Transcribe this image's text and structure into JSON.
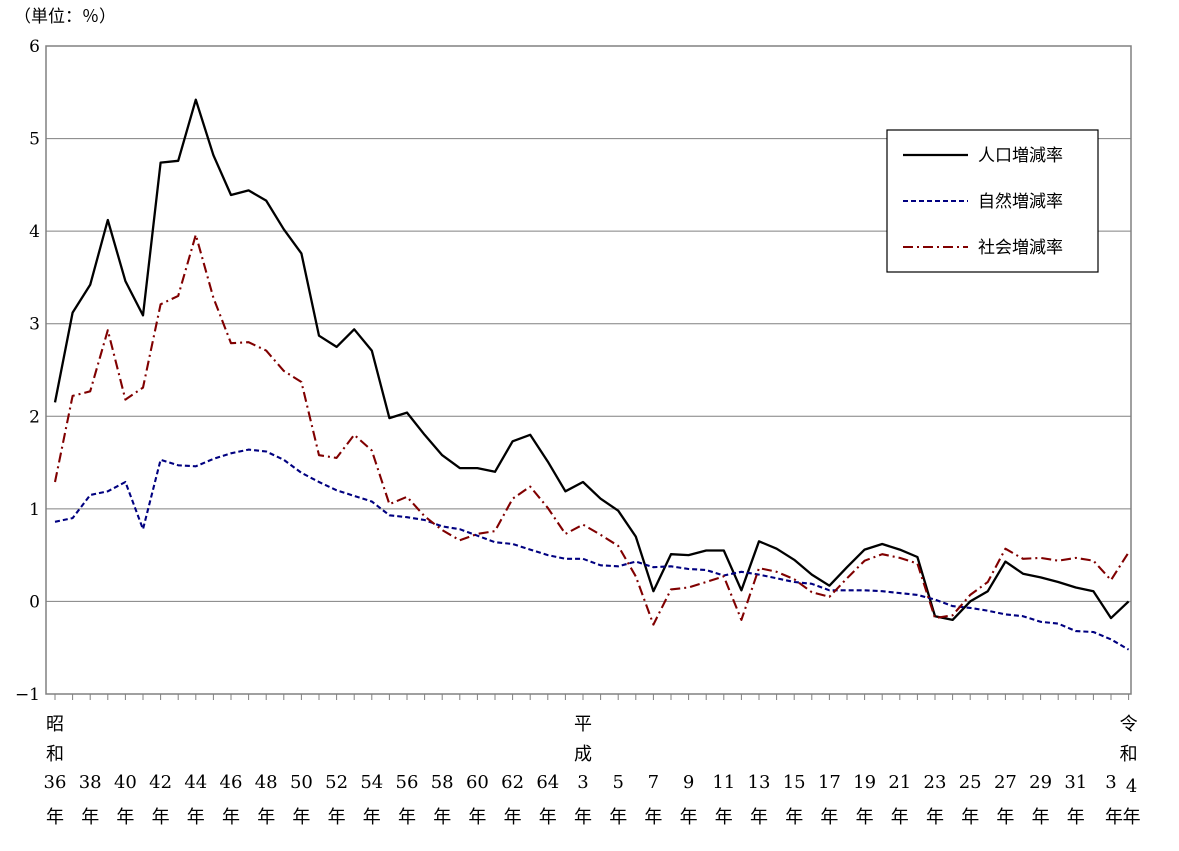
{
  "chart_data": {
    "type": "line",
    "unit_label": "（単位：％）",
    "ylim": [
      -1,
      6
    ],
    "yticks": [
      "6",
      "5",
      "4",
      "3",
      "2",
      "1",
      "0",
      "-1"
    ],
    "grid": true,
    "legend_position": "top-right",
    "era_labels": [
      {
        "text": "昭和",
        "index": 0
      },
      {
        "text": "平成",
        "index": 30
      },
      {
        "text": "令和",
        "index": 61
      }
    ],
    "x_tick_labels": [
      {
        "index": 0,
        "num": "36",
        "suffix": "年"
      },
      {
        "index": 2,
        "num": "38",
        "suffix": "年"
      },
      {
        "index": 4,
        "num": "40",
        "suffix": "年"
      },
      {
        "index": 6,
        "num": "42",
        "suffix": "年"
      },
      {
        "index": 8,
        "num": "44",
        "suffix": "年"
      },
      {
        "index": 10,
        "num": "46",
        "suffix": "年"
      },
      {
        "index": 12,
        "num": "48",
        "suffix": "年"
      },
      {
        "index": 14,
        "num": "50",
        "suffix": "年"
      },
      {
        "index": 16,
        "num": "52",
        "suffix": "年"
      },
      {
        "index": 18,
        "num": "54",
        "suffix": "年"
      },
      {
        "index": 20,
        "num": "56",
        "suffix": "年"
      },
      {
        "index": 22,
        "num": "58",
        "suffix": "年"
      },
      {
        "index": 24,
        "num": "60",
        "suffix": "年"
      },
      {
        "index": 26,
        "num": "62",
        "suffix": "年"
      },
      {
        "index": 28,
        "num": "64",
        "suffix": "年"
      },
      {
        "index": 30,
        "num": "3",
        "suffix": "年"
      },
      {
        "index": 32,
        "num": "5",
        "suffix": "年"
      },
      {
        "index": 34,
        "num": "7",
        "suffix": "年"
      },
      {
        "index": 36,
        "num": "9",
        "suffix": "年"
      },
      {
        "index": 38,
        "num": "11",
        "suffix": "年"
      },
      {
        "index": 40,
        "num": "13",
        "suffix": "年"
      },
      {
        "index": 42,
        "num": "15",
        "suffix": "年"
      },
      {
        "index": 44,
        "num": "17",
        "suffix": "年"
      },
      {
        "index": 46,
        "num": "19",
        "suffix": "年"
      },
      {
        "index": 48,
        "num": "21",
        "suffix": "年"
      },
      {
        "index": 50,
        "num": "23",
        "suffix": "年"
      },
      {
        "index": 52,
        "num": "25",
        "suffix": "年"
      },
      {
        "index": 54,
        "num": "27",
        "suffix": "年"
      },
      {
        "index": 56,
        "num": "29",
        "suffix": "年"
      },
      {
        "index": 58,
        "num": "31",
        "suffix": "年"
      },
      {
        "index": 60,
        "num": "3",
        "suffix": "年"
      },
      {
        "index": 61,
        "num": "4",
        "suffix": "年"
      }
    ],
    "series": [
      {
        "name": "人口増減率",
        "color": "#000000",
        "style": "solid",
        "values": [
          2.15,
          3.12,
          3.42,
          4.12,
          3.46,
          3.09,
          4.74,
          4.76,
          5.42,
          4.82,
          4.39,
          4.44,
          4.33,
          4.02,
          3.76,
          2.87,
          2.75,
          2.94,
          2.71,
          1.98,
          2.04,
          1.8,
          1.58,
          1.44,
          1.44,
          1.4,
          1.73,
          1.8,
          1.51,
          1.19,
          1.29,
          1.11,
          0.98,
          0.7,
          0.11,
          0.51,
          0.5,
          0.55,
          0.55,
          0.12,
          0.65,
          0.57,
          0.45,
          0.29,
          0.17,
          0.37,
          0.56,
          0.62,
          0.56,
          0.48,
          -0.16,
          -0.2,
          0.0,
          0.11,
          0.43,
          0.3,
          0.26,
          0.21,
          0.15,
          0.11,
          -0.18,
          0.0
        ]
      },
      {
        "name": "自然増減率",
        "color": "#000080",
        "style": "dashed",
        "values": [
          0.86,
          0.9,
          1.15,
          1.19,
          1.29,
          0.78,
          1.53,
          1.47,
          1.46,
          1.54,
          1.6,
          1.64,
          1.62,
          1.53,
          1.39,
          1.29,
          1.2,
          1.14,
          1.08,
          0.93,
          0.91,
          0.88,
          0.81,
          0.78,
          0.71,
          0.64,
          0.62,
          0.56,
          0.5,
          0.46,
          0.46,
          0.39,
          0.38,
          0.43,
          0.37,
          0.38,
          0.35,
          0.34,
          0.28,
          0.32,
          0.29,
          0.25,
          0.21,
          0.19,
          0.12,
          0.12,
          0.12,
          0.11,
          0.09,
          0.07,
          0.02,
          -0.05,
          -0.07,
          -0.1,
          -0.14,
          -0.16,
          -0.22,
          -0.24,
          -0.32,
          -0.33,
          -0.41,
          -0.52
        ]
      },
      {
        "name": "社会増減率",
        "color": "#800000",
        "style": "dashdot",
        "values": [
          1.29,
          2.22,
          2.27,
          2.93,
          2.18,
          2.31,
          3.21,
          3.3,
          3.96,
          3.28,
          2.79,
          2.8,
          2.71,
          2.49,
          2.37,
          1.58,
          1.55,
          1.8,
          1.63,
          1.05,
          1.13,
          0.92,
          0.77,
          0.66,
          0.73,
          0.76,
          1.11,
          1.24,
          1.01,
          0.73,
          0.83,
          0.72,
          0.6,
          0.27,
          -0.25,
          0.13,
          0.15,
          0.21,
          0.27,
          -0.2,
          0.36,
          0.32,
          0.24,
          0.1,
          0.05,
          0.25,
          0.44,
          0.51,
          0.47,
          0.41,
          -0.18,
          -0.15,
          0.07,
          0.21,
          0.57,
          0.46,
          0.47,
          0.44,
          0.47,
          0.44,
          0.23,
          0.53
        ]
      }
    ]
  }
}
